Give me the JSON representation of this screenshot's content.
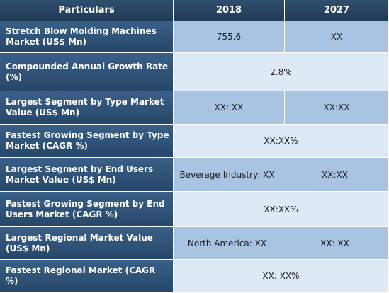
{
  "header": {
    "col1": "Particulars",
    "col2": "2018",
    "col3": "2027"
  },
  "rows": [
    {
      "label": "Stretch Blow Molding Machines Market (US$ Mn)",
      "v2018": "755.6",
      "v2027": "XX"
    },
    {
      "label": "Compounded Annual Growth Rate (%)",
      "merged": "2.8%"
    },
    {
      "label": "Largest Segment by Type Market Value (US$ Mn)",
      "v2018": "XX: XX",
      "v2027": "XX:XX"
    },
    {
      "label": "Fastest Growing Segment by Type Market (CAGR %)",
      "merged": "XX:XX%"
    },
    {
      "label": "Largest Segment by End Users Market Value (US$ Mn)",
      "v2018": "Beverage Industry: XX",
      "v2027": "XX:XX"
    },
    {
      "label": "Fastest Growing Segment by End Users Market (CAGR %)",
      "merged": "XX:XX%"
    },
    {
      "label": "Largest Regional Market Value (US$ Mn)",
      "v2018": "North America: XX",
      "v2027": "XX: XX"
    },
    {
      "label": "Fastest Regional Market (CAGR %)",
      "merged": "XX: XX%"
    }
  ],
  "colors": {
    "header_bg": "#203a55",
    "label_bg": "#2f5378",
    "row_dark": "#a9c4e2",
    "row_light": "#dde9f5"
  }
}
